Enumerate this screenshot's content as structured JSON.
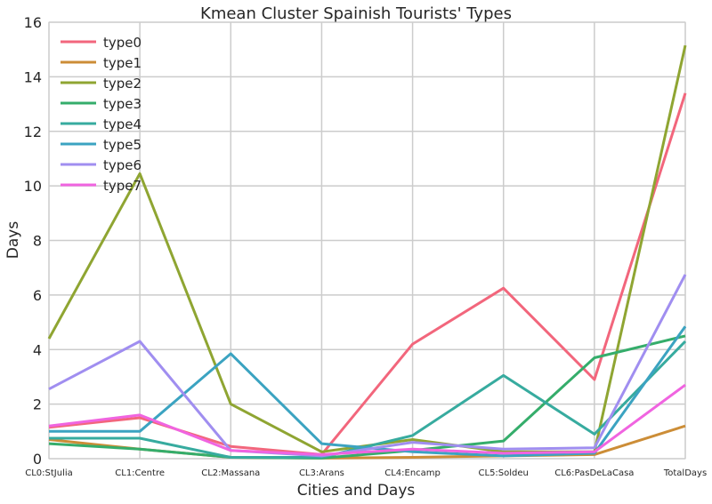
{
  "chart_data": {
    "type": "line",
    "title": "Kmean Cluster Spainish Tourists' Types",
    "xlabel": "Cities and Days",
    "ylabel": "Days",
    "ylim": [
      0,
      16
    ],
    "yticks": [
      0,
      2,
      4,
      6,
      8,
      10,
      12,
      14,
      16
    ],
    "categories": [
      "CL0:StJulia",
      "CL1:Centre",
      "CL2:Massana",
      "CL3:Arans",
      "CL4:Encamp",
      "CL5:Soldeu",
      "CL6:PasDeLaCasa",
      "TotalDays"
    ],
    "grid": true,
    "legend_position": "top-left",
    "series": [
      {
        "name": "type0",
        "color": "#f2667c",
        "values": [
          1.15,
          1.5,
          0.45,
          0.15,
          4.2,
          6.25,
          2.9,
          13.4
        ]
      },
      {
        "name": "type1",
        "color": "#cc8d37",
        "values": [
          0.7,
          0.35,
          0.05,
          0.02,
          0.05,
          0.1,
          0.15,
          1.2
        ]
      },
      {
        "name": "type2",
        "color": "#8fa532",
        "values": [
          4.4,
          10.45,
          2.0,
          0.25,
          0.7,
          0.25,
          0.25,
          15.15
        ]
      },
      {
        "name": "type3",
        "color": "#35ad6b",
        "values": [
          0.55,
          0.35,
          0.05,
          0.02,
          0.3,
          0.65,
          3.7,
          4.5
        ]
      },
      {
        "name": "type4",
        "color": "#37ab9f",
        "values": [
          0.75,
          0.75,
          0.05,
          0.05,
          0.85,
          3.05,
          0.9,
          4.3
        ]
      },
      {
        "name": "type5",
        "color": "#3ba3c1",
        "values": [
          1.0,
          1.0,
          3.85,
          0.55,
          0.25,
          0.1,
          0.2,
          4.85
        ]
      },
      {
        "name": "type6",
        "color": "#a08ef0",
        "values": [
          2.55,
          4.3,
          0.3,
          0.1,
          0.6,
          0.35,
          0.4,
          6.75
        ]
      },
      {
        "name": "type7",
        "color": "#f064e0",
        "values": [
          1.2,
          1.6,
          0.3,
          0.15,
          0.35,
          0.2,
          0.25,
          2.7
        ]
      }
    ]
  }
}
